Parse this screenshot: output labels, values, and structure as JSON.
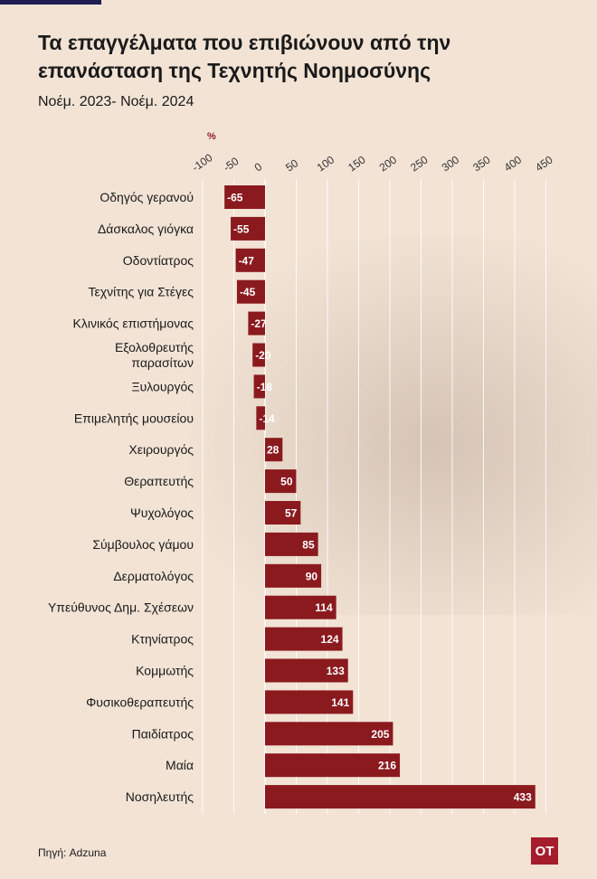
{
  "header": {
    "title_line1": "Τα επαγγέλματα που επιβιώνουν από την",
    "title_line2": "επανάσταση της Τεχνητής Νοημοσύνης",
    "subtitle": "Νοέμ. 2023- Νοέμ. 2024"
  },
  "footer": {
    "source": "Πηγή: Adzuna",
    "logo": "OT"
  },
  "colors": {
    "bar": "#8b1a1f",
    "background": "#f2e3d5",
    "brand": "#a51c2c"
  },
  "chart_data": {
    "type": "bar",
    "orientation": "horizontal",
    "title": "Τα επαγγέλματα που επιβιώνουν από την επανάσταση της Τεχνητής Νοημοσύνης",
    "unit_label": "%",
    "xlim": [
      -100,
      450
    ],
    "ticks": [
      -100,
      -50,
      0,
      50,
      100,
      150,
      200,
      250,
      300,
      350,
      400,
      450
    ],
    "categories": [
      [
        "Οδηγός γερανού"
      ],
      [
        "Δάσκαλος γιόγκα"
      ],
      [
        "Οδοντίατρος"
      ],
      [
        "Τεχνίτης για Στέγες"
      ],
      [
        "Κλινικός επιστήμονας"
      ],
      [
        "Εξολοθρευτής",
        "παρασίτων"
      ],
      [
        "Ξυλουργός"
      ],
      [
        "Επιμελητής μουσείου"
      ],
      [
        "Χειρουργός"
      ],
      [
        "Θεραπευτής"
      ],
      [
        "Ψυχολόγος"
      ],
      [
        "Σύμβουλος γάμου"
      ],
      [
        "Δερματολόγος"
      ],
      [
        "Υπεύθυνος Δημ. Σχέσεων"
      ],
      [
        "Κτηνίατρος"
      ],
      [
        "Κομμωτής"
      ],
      [
        "Φυσικοθεραπευτής"
      ],
      [
        "Παιδίατρος"
      ],
      [
        "Μαία"
      ],
      [
        "Νοσηλευτής"
      ]
    ],
    "values": [
      -65,
      -55,
      -47,
      -45,
      -27,
      -20,
      -18,
      -14,
      28,
      50,
      57,
      85,
      90,
      114,
      124,
      133,
      141,
      205,
      216,
      433
    ]
  }
}
